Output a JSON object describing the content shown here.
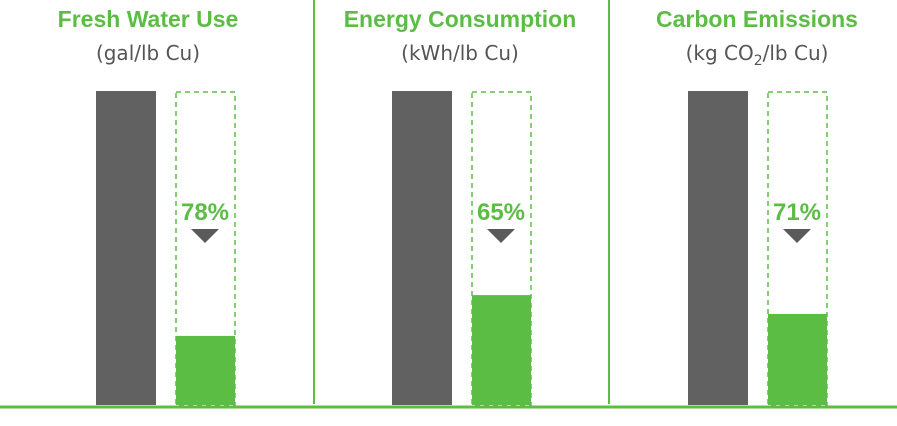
{
  "chart_data": {
    "type": "bar",
    "colors": {
      "baseline": "#616161",
      "reduced": "#5cbd45",
      "text_title": "#5cbd45",
      "text_unit": "#555555",
      "arrow": "#5a5a5a",
      "divider": "#5cbd45"
    },
    "panels": [
      {
        "title": "Fresh Water Use",
        "unit": "(gal/lb Cu)",
        "reduction_label": "78%",
        "baseline_value": 1.0,
        "reduced_value": 0.22
      },
      {
        "title": "Energy Consumption",
        "unit": "(kWh/lb Cu)",
        "reduction_label": "65%",
        "baseline_value": 1.0,
        "reduced_value": 0.35
      },
      {
        "title": "Carbon Emissions",
        "unit_prefix": "(kg CO",
        "unit_sub": "2",
        "unit_suffix": "/lb Cu)",
        "reduction_label": "71%",
        "baseline_value": 1.0,
        "reduced_value": 0.29
      }
    ],
    "legend": "none",
    "grid": false
  }
}
